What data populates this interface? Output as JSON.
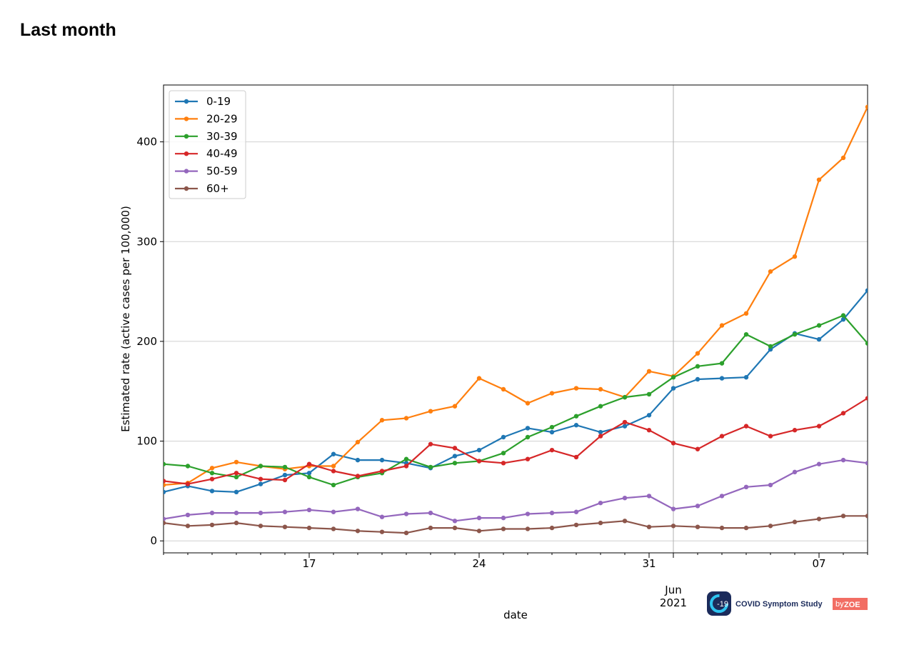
{
  "page": {
    "title": "Last month"
  },
  "chart_data": {
    "type": "line",
    "xlabel": "date",
    "ylabel": "Estimated rate (active cases per 100,000)",
    "ylim": [
      -12,
      457
    ],
    "yticks": [
      0,
      100,
      200,
      300,
      400
    ],
    "x_start": "2021-05-11",
    "x_end": "2021-06-09",
    "xticks": [
      {
        "date": "2021-05-17",
        "label": "17"
      },
      {
        "date": "2021-05-24",
        "label": "24"
      },
      {
        "date": "2021-05-31",
        "label": "31"
      },
      {
        "date": "2021-06-07",
        "label": "07"
      }
    ],
    "month_label": {
      "date": "2021-06-01",
      "lines": [
        "Jun",
        "2021"
      ]
    },
    "vline_date": "2021-06-01",
    "grid": true,
    "legend_position": "top-left",
    "dates": [
      "2021-05-11",
      "2021-05-12",
      "2021-05-13",
      "2021-05-14",
      "2021-05-15",
      "2021-05-16",
      "2021-05-17",
      "2021-05-18",
      "2021-05-19",
      "2021-05-20",
      "2021-05-21",
      "2021-05-22",
      "2021-05-23",
      "2021-05-24",
      "2021-05-25",
      "2021-05-26",
      "2021-05-27",
      "2021-05-28",
      "2021-05-29",
      "2021-05-30",
      "2021-05-31",
      "2021-06-01",
      "2021-06-02",
      "2021-06-03",
      "2021-06-04",
      "2021-06-05",
      "2021-06-06",
      "2021-06-07",
      "2021-06-08",
      "2021-06-09"
    ],
    "series": [
      {
        "name": "0-19",
        "color": "#1f77b4",
        "values": [
          49,
          55,
          50,
          49,
          57,
          66,
          68,
          87,
          81,
          81,
          78,
          73,
          85,
          91,
          104,
          113,
          109,
          116,
          109,
          115,
          126,
          153,
          162,
          163,
          164,
          192,
          208,
          202,
          222,
          251
        ]
      },
      {
        "name": "20-29",
        "color": "#ff7f0e",
        "values": [
          56,
          58,
          73,
          79,
          75,
          72,
          75,
          75,
          99,
          121,
          123,
          130,
          135,
          163,
          152,
          138,
          148,
          153,
          152,
          144,
          170,
          165,
          188,
          216,
          228,
          270,
          285,
          362,
          384,
          435
        ]
      },
      {
        "name": "30-39",
        "color": "#2ca02c",
        "values": [
          77,
          75,
          68,
          64,
          75,
          74,
          64,
          56,
          64,
          68,
          82,
          74,
          78,
          80,
          88,
          104,
          114,
          125,
          135,
          144,
          147,
          164,
          175,
          178,
          207,
          195,
          207,
          216,
          226,
          198
        ]
      },
      {
        "name": "40-49",
        "color": "#d62728",
        "values": [
          60,
          57,
          62,
          68,
          62,
          61,
          77,
          70,
          65,
          70,
          75,
          97,
          93,
          80,
          78,
          82,
          91,
          84,
          105,
          119,
          111,
          98,
          92,
          105,
          115,
          105,
          111,
          115,
          128,
          143
        ]
      },
      {
        "name": "50-59",
        "color": "#9467bd",
        "values": [
          22,
          26,
          28,
          28,
          28,
          29,
          31,
          29,
          32,
          24,
          27,
          28,
          20,
          23,
          23,
          27,
          28,
          29,
          38,
          43,
          45,
          32,
          35,
          45,
          54,
          56,
          69,
          77,
          81,
          78
        ]
      },
      {
        "name": "60+",
        "color": "#8c564b",
        "values": [
          18,
          15,
          16,
          18,
          15,
          14,
          13,
          12,
          10,
          9,
          8,
          13,
          13,
          10,
          12,
          12,
          13,
          16,
          18,
          20,
          14,
          15,
          14,
          13,
          13,
          15,
          19,
          22,
          25,
          25
        ]
      }
    ]
  },
  "logo": {
    "badge": "-19",
    "text": "COVID Symptom Study",
    "by": "by",
    "brand": "ZOE"
  }
}
